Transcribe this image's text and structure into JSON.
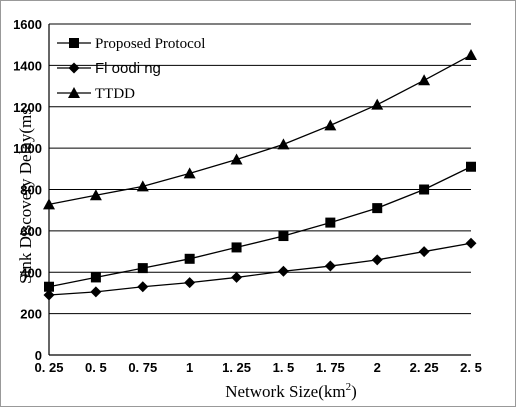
{
  "chart_data": {
    "type": "line",
    "categories": [
      "0. 25",
      "0. 5",
      "0. 75",
      "1",
      "1. 25",
      "1. 5",
      "1. 75",
      "2",
      "2. 25",
      "2. 5"
    ],
    "xlabel": "Network Size(km",
    "xlabel_sup": "2",
    "xlabel_close": ")",
    "ylabel": "Sink Discovery Delay(ms",
    "ylim": [
      0,
      1600
    ],
    "yticks": [
      "0",
      "200",
      "400",
      "600",
      "800",
      "1000",
      "1200",
      "1400",
      "1600"
    ],
    "grid": "horizontal",
    "legend_position": "top-left",
    "series": [
      {
        "name": "Proposed Protocol",
        "marker": "square",
        "values": [
          330,
          375,
          420,
          465,
          520,
          575,
          640,
          710,
          800,
          910
        ]
      },
      {
        "name": "Fl oodi ng",
        "marker": "diamond",
        "values": [
          290,
          305,
          330,
          350,
          375,
          405,
          430,
          460,
          500,
          540
        ]
      },
      {
        "name": "TTDD",
        "marker": "triangle",
        "values": [
          728,
          772,
          815,
          878,
          945,
          1018,
          1110,
          1210,
          1328,
          1450
        ]
      }
    ],
    "colors": {
      "line": "#000000",
      "grid": "#000000",
      "background": "#ffffff"
    }
  }
}
